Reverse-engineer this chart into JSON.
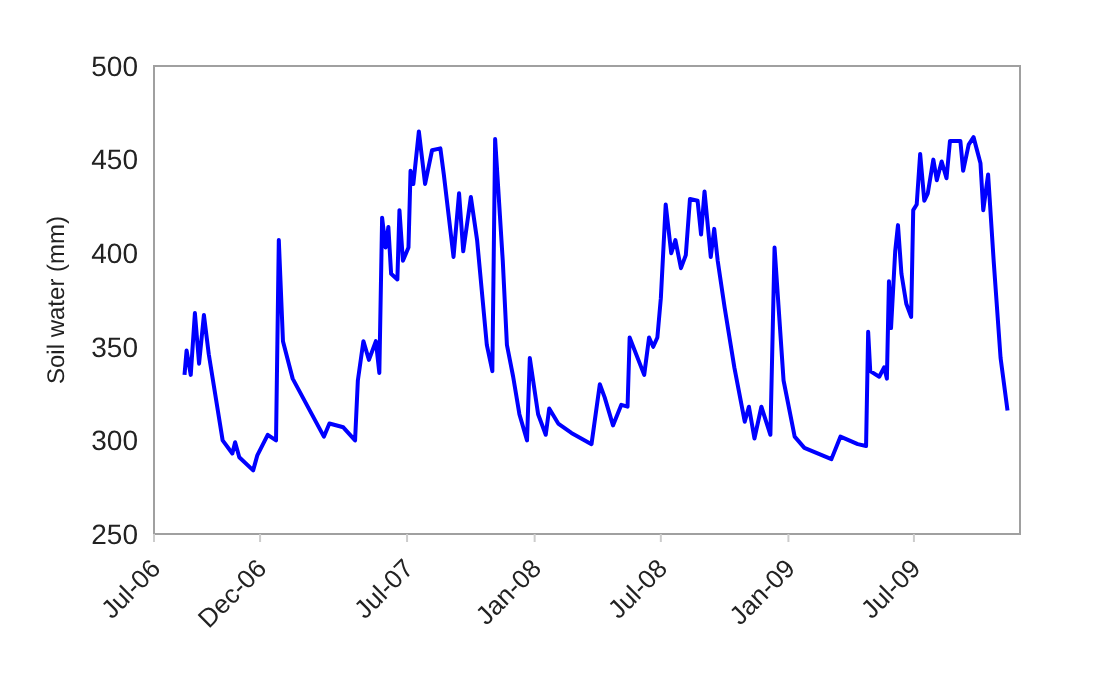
{
  "chart_data": {
    "type": "line",
    "ylabel": "Soil water (mm)",
    "ylim": [
      250,
      500
    ],
    "yticks": [
      250,
      300,
      350,
      400,
      450,
      500
    ],
    "xlim": [
      "2006-07-01",
      "2009-12-01"
    ],
    "xticks": [
      {
        "value": "2006-07-01",
        "label": "Jul-06"
      },
      {
        "value": "2006-12-01",
        "label": "Dec-06"
      },
      {
        "value": "2007-07-01",
        "label": "Jul-07"
      },
      {
        "value": "2008-01-01",
        "label": "Jan-08"
      },
      {
        "value": "2008-07-01",
        "label": "Jul-08"
      },
      {
        "value": "2009-01-01",
        "label": "Jan-09"
      },
      {
        "value": "2009-07-01",
        "label": "Jul-09"
      }
    ],
    "grid": false,
    "marker": "none",
    "line_style": "solid",
    "series": [
      {
        "color": "#0000ff",
        "x": [
          "2006-08-14",
          "2006-08-17",
          "2006-08-23",
          "2006-08-29",
          "2006-09-04",
          "2006-09-11",
          "2006-09-18",
          "2006-10-08",
          "2006-10-22",
          "2006-10-26",
          "2006-11-01",
          "2006-11-21",
          "2006-11-27",
          "2006-12-12",
          "2006-12-24",
          "2006-12-28",
          "2007-01-03",
          "2007-01-17",
          "2007-03-03",
          "2007-03-11",
          "2007-03-31",
          "2007-04-17",
          "2007-04-21",
          "2007-04-29",
          "2007-05-07",
          "2007-05-17",
          "2007-05-22",
          "2007-05-26",
          "2007-05-31",
          "2007-06-04",
          "2007-06-08",
          "2007-06-17",
          "2007-06-20",
          "2007-06-25",
          "2007-07-03",
          "2007-07-06",
          "2007-07-10",
          "2007-07-18",
          "2007-07-27",
          "2007-08-06",
          "2007-08-18",
          "2007-08-23",
          "2007-09-06",
          "2007-09-14",
          "2007-09-20",
          "2007-10-01",
          "2007-10-10",
          "2007-10-24",
          "2007-11-01",
          "2007-11-05",
          "2007-11-16",
          "2007-11-22",
          "2007-12-01",
          "2007-12-10",
          "2007-12-21",
          "2007-12-25",
          "2008-01-06",
          "2008-01-17",
          "2008-01-22",
          "2008-02-04",
          "2008-02-23",
          "2008-03-23",
          "2008-04-04",
          "2008-04-11",
          "2008-04-23",
          "2008-05-05",
          "2008-05-14",
          "2008-05-17",
          "2008-06-07",
          "2008-06-14",
          "2008-06-20",
          "2008-06-26",
          "2008-07-01",
          "2008-07-08",
          "2008-07-16",
          "2008-07-22",
          "2008-07-30",
          "2008-08-06",
          "2008-08-12",
          "2008-08-23",
          "2008-08-28",
          "2008-09-02",
          "2008-09-11",
          "2008-09-16",
          "2008-09-21",
          "2008-10-01",
          "2008-10-15",
          "2008-10-30",
          "2008-11-05",
          "2008-11-13",
          "2008-11-23",
          "2008-12-06",
          "2008-12-12",
          "2008-12-25",
          "2009-01-10",
          "2009-01-24",
          "2009-03-04",
          "2009-03-17",
          "2009-04-11",
          "2009-04-23",
          "2009-04-26",
          "2009-04-29",
          "2009-05-12",
          "2009-05-19",
          "2009-05-23",
          "2009-05-26",
          "2009-05-29",
          "2009-06-04",
          "2009-06-08",
          "2009-06-13",
          "2009-06-20",
          "2009-06-27",
          "2009-06-30",
          "2009-07-05",
          "2009-07-10",
          "2009-07-16",
          "2009-07-21",
          "2009-07-29",
          "2009-08-03",
          "2009-08-10",
          "2009-08-17",
          "2009-08-22",
          "2009-09-06",
          "2009-09-10",
          "2009-09-18",
          "2009-09-25",
          "2009-10-05",
          "2009-10-09",
          "2009-10-16",
          "2009-10-24",
          "2009-11-03",
          "2009-11-13"
        ],
        "values": [
          335,
          348,
          335,
          368,
          341,
          367,
          346,
          300,
          293,
          299,
          291,
          284,
          292,
          303,
          300,
          407,
          353,
          333,
          302,
          309,
          307,
          300,
          332,
          353,
          343,
          353,
          336,
          419,
          403,
          414,
          389,
          386,
          423,
          396,
          403,
          444,
          437,
          465,
          437,
          455,
          456,
          442,
          398,
          432,
          401,
          430,
          407,
          351,
          337,
          461,
          396,
          351,
          334,
          314,
          300,
          344,
          314,
          303,
          317,
          309,
          304,
          298,
          330,
          323,
          308,
          319,
          318,
          355,
          335,
          355,
          350,
          355,
          376,
          426,
          400,
          407,
          392,
          399,
          429,
          428,
          410,
          433,
          398,
          413,
          396,
          371,
          339,
          310,
          318,
          301,
          318,
          303,
          403,
          332,
          302,
          296,
          290,
          302,
          298,
          297,
          358,
          337,
          334,
          339,
          333,
          385,
          360,
          401,
          415,
          389,
          373,
          366,
          423,
          426,
          453,
          428,
          432,
          450,
          439,
          449,
          440,
          460,
          460,
          444,
          458,
          462,
          448,
          423,
          442,
          396,
          344,
          316
        ]
      }
    ]
  }
}
